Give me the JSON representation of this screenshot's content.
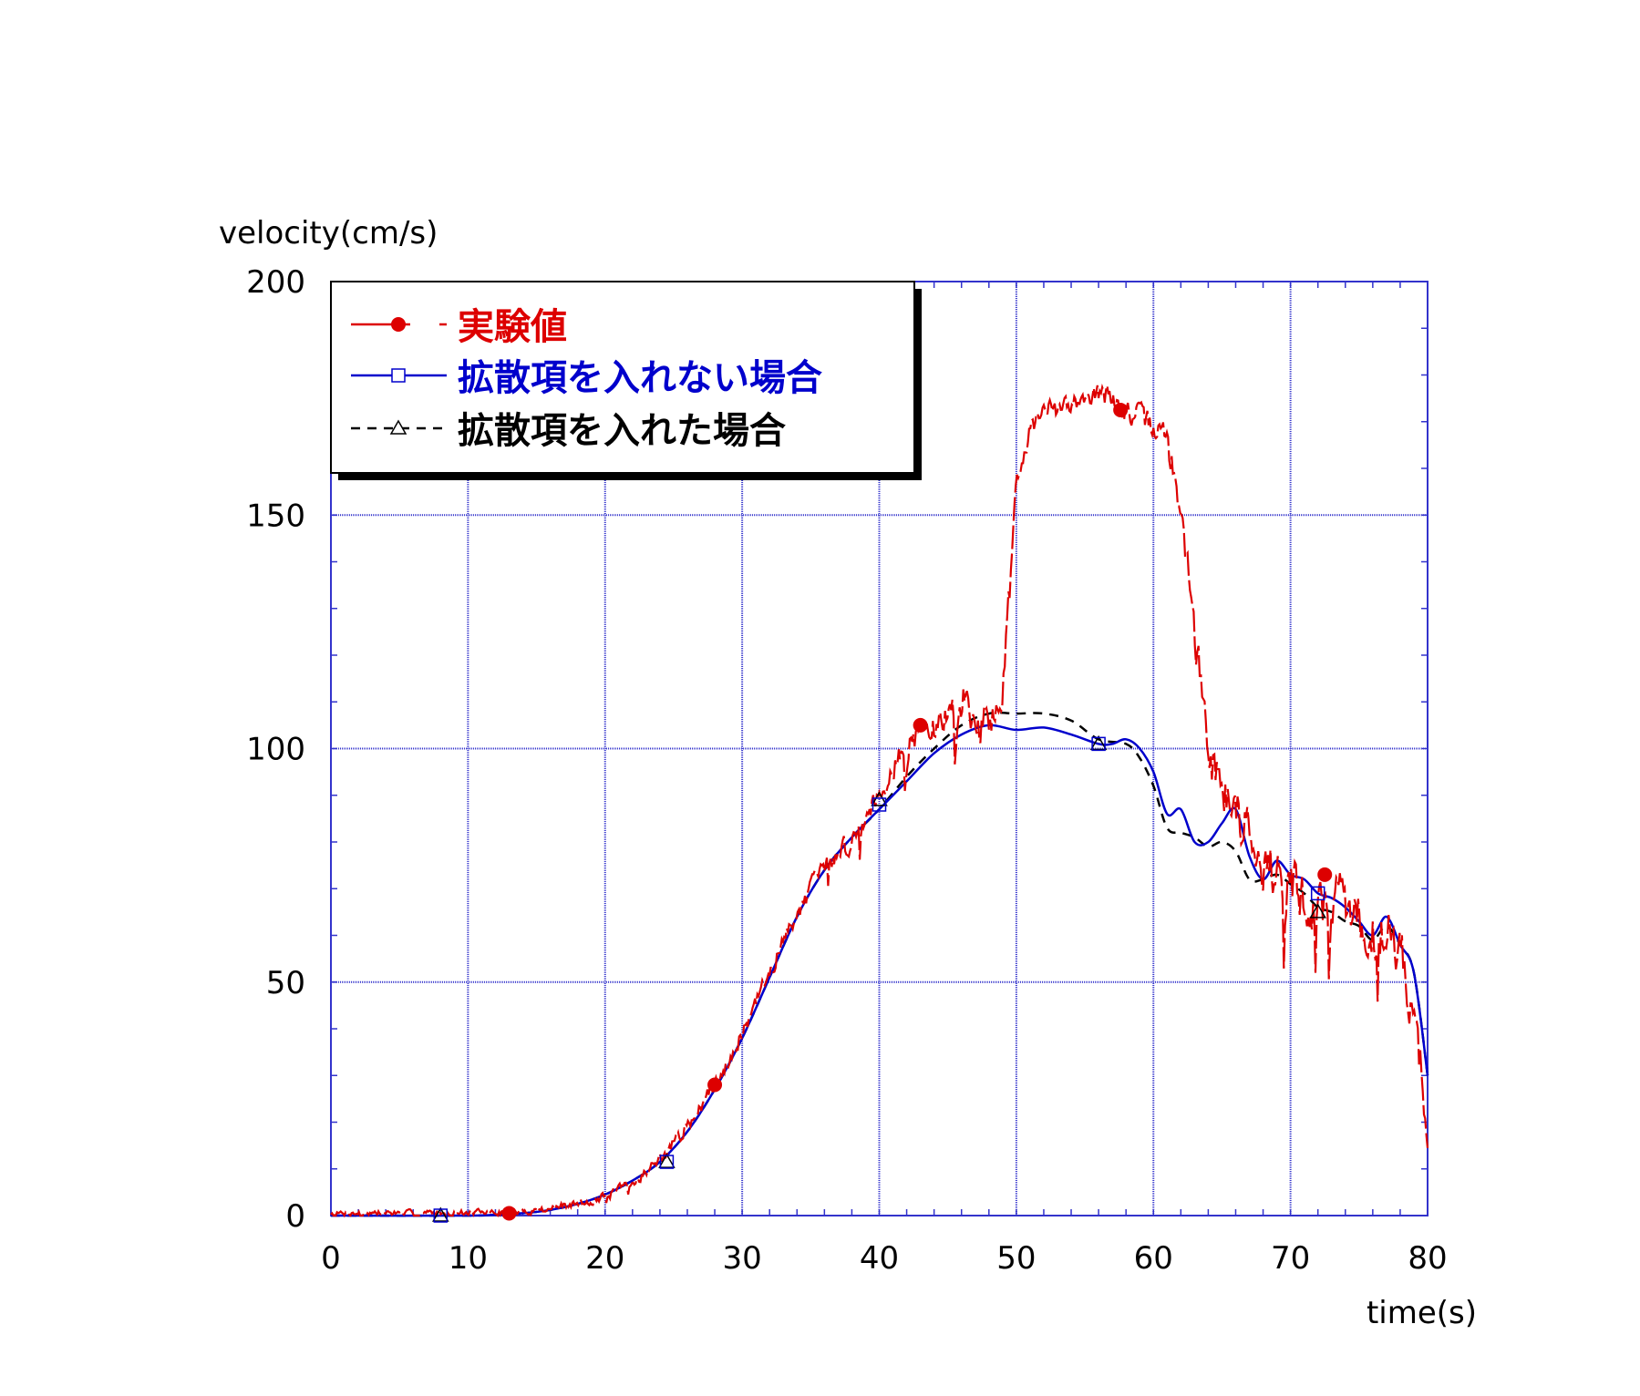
{
  "chart_data": {
    "type": "line",
    "xlabel": "time(s)",
    "ylabel": "velocity(cm/s)",
    "xlim": [
      0,
      80
    ],
    "ylim": [
      0,
      200
    ],
    "x_ticks": [
      0,
      10,
      20,
      30,
      40,
      50,
      60,
      70,
      80
    ],
    "y_ticks": [
      0,
      50,
      100,
      150,
      200
    ],
    "x_tick_labels": [
      "0",
      "10",
      "20",
      "30",
      "40",
      "50",
      "60",
      "70",
      "80"
    ],
    "y_tick_labels": [
      "0",
      "50",
      "100",
      "150",
      "200"
    ],
    "grid": true,
    "legend_placement": "top-left",
    "colors": {
      "grid": "#3333cc",
      "experimental": "#dd0000",
      "no_diffusion": "#0000cc",
      "with_diffusion": "#000000"
    },
    "series": [
      {
        "name": "実験値",
        "color": "#dd0000",
        "style": "dash-long",
        "marker": "filled-circle",
        "x": [
          0,
          2,
          4,
          6,
          8,
          10,
          12,
          14,
          16,
          18,
          20,
          22,
          24,
          26,
          28,
          30,
          32,
          34,
          36,
          38,
          40,
          41,
          42,
          43,
          44,
          45,
          46,
          47,
          48,
          49,
          50,
          51,
          52,
          53,
          54,
          55,
          56,
          57,
          58,
          59,
          60,
          61,
          62,
          63,
          64,
          65,
          66,
          67,
          68,
          69,
          70,
          71,
          72,
          73,
          74,
          75,
          76,
          77,
          78,
          79,
          80
        ],
        "y": [
          0.5,
          0.5,
          0.6,
          0.5,
          0.6,
          0.6,
          0.6,
          0.8,
          1.5,
          2.5,
          4,
          7,
          12,
          19,
          28,
          39,
          52,
          65,
          75,
          80,
          91,
          96,
          100,
          104,
          104,
          107,
          110,
          108,
          105,
          112,
          158,
          168,
          173,
          172,
          174,
          176,
          176,
          175,
          172,
          171,
          169,
          166,
          151,
          125,
          100,
          92,
          87,
          83,
          76,
          73,
          71,
          67,
          66,
          68,
          68,
          63,
          60,
          61,
          58,
          42,
          20
        ],
        "marker_x": [
          13.0,
          28.0,
          43.0,
          57.6,
          72.5
        ],
        "marker_y": [
          0.5,
          28.0,
          105.0,
          172.5,
          73.0
        ],
        "noise": {
          "amplitude": [
            [
              0,
              1
            ],
            [
              13,
              1
            ],
            [
              20,
              1.5
            ],
            [
              30,
              2.5
            ],
            [
              40,
              4
            ],
            [
              44,
              5
            ],
            [
              47,
              8
            ],
            [
              50,
              3
            ],
            [
              60,
              4
            ],
            [
              64,
              8
            ],
            [
              70,
              9
            ],
            [
              80,
              9
            ]
          ],
          "seed": 7
        }
      },
      {
        "name": "拡散項を入れない場合",
        "color": "#0000cc",
        "style": "solid",
        "marker": "open-square",
        "x": [
          0,
          10,
          12,
          14,
          16,
          18,
          20,
          22,
          24,
          26,
          28,
          30,
          32,
          34,
          36,
          38,
          40,
          42,
          44,
          46,
          48,
          50,
          52,
          54,
          56,
          57,
          58,
          59,
          60,
          61,
          62,
          63,
          64,
          65,
          66,
          67,
          68,
          69,
          70,
          71,
          72,
          73,
          74,
          75,
          76,
          77,
          78,
          79,
          80
        ],
        "y": [
          0,
          0,
          0.2,
          0.5,
          1.2,
          2.5,
          4.5,
          7.5,
          11.5,
          18,
          27,
          38,
          51,
          64,
          74,
          81,
          87,
          93,
          99,
          103,
          105,
          104,
          104.5,
          103,
          101,
          101,
          102,
          100,
          95,
          86,
          87,
          80,
          80,
          84,
          87,
          77,
          72,
          76,
          73,
          72,
          69,
          68,
          66,
          63,
          60,
          64,
          58,
          52,
          30
        ],
        "marker_x": [
          8.0,
          24.5,
          40.0,
          56.0,
          72.0
        ],
        "marker_y": [
          0.0,
          11.5,
          88.0,
          101.0,
          69.0
        ]
      },
      {
        "name": "拡散項を入れた場合",
        "color": "#000000",
        "style": "dashed",
        "marker": "open-triangle",
        "x": [
          0,
          10,
          12,
          14,
          16,
          18,
          20,
          22,
          24,
          26,
          28,
          30,
          32,
          34,
          36,
          38,
          40,
          42,
          44,
          46,
          48,
          50,
          52,
          54,
          56,
          58,
          59,
          60,
          61,
          62,
          63,
          64,
          65,
          66,
          67,
          68,
          69,
          70,
          71,
          72,
          73,
          74,
          75,
          76,
          77,
          78,
          79,
          80
        ],
        "y": [
          0,
          0,
          0.2,
          0.5,
          1.2,
          2.5,
          4.5,
          7.5,
          11.5,
          18,
          27,
          38,
          51,
          64,
          74,
          81,
          87,
          94,
          100,
          105,
          107.5,
          107.5,
          107.5,
          106,
          102,
          101,
          98,
          92,
          83,
          82,
          81,
          79,
          80,
          78,
          72,
          72,
          73,
          71,
          69,
          66,
          65,
          63,
          62,
          59,
          62,
          58,
          52,
          30
        ],
        "marker_x": [
          8.0,
          24.5,
          40.0,
          56.0,
          72.0
        ],
        "marker_y": [
          0.0,
          11.5,
          89.0,
          101.0,
          65.0
        ]
      }
    ]
  }
}
